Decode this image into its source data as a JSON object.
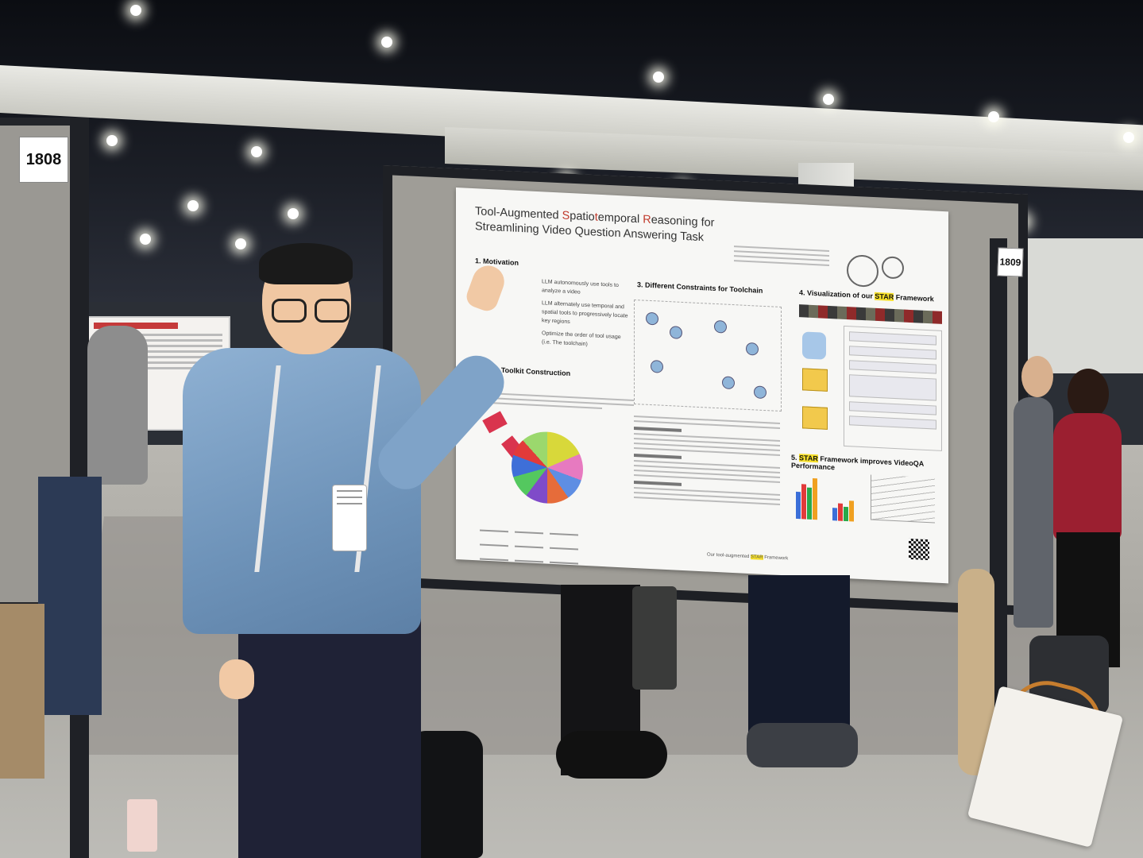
{
  "booths": {
    "left": "1808",
    "right": "1809"
  },
  "poster": {
    "title_prefix": "Tool-Augmented ",
    "title_s": "S",
    "title_mid": "patio",
    "title_t": "t",
    "title_mid2": "emporal ",
    "title_r": "R",
    "title_rest": "easoning for",
    "title_line2": "Streamlining Video Question Answering Task",
    "sections": {
      "motivation": "1. Motivation",
      "toolkit": "Video Toolkit Construction",
      "constraints": "3. Different Constraints for Toolchain",
      "visualization_prefix": "4. Visualization of our ",
      "visualization_star": "STAR",
      "visualization_suffix": " Framework",
      "performance_prefix": "5. ",
      "performance_star": "STAR",
      "performance_suffix": " Framework improves VideoQA Performance"
    },
    "motivation_items": [
      "LLM autonomously use tools to analyze a video",
      "LLM alternately use temporal and spatial tools to progressively locate key regions",
      "Optimize the order of tool usage (i.e. The toolchain)"
    ],
    "footer_prefix": "Our tool-augmented ",
    "footer_star": "STAR",
    "footer_suffix": " Framework"
  }
}
